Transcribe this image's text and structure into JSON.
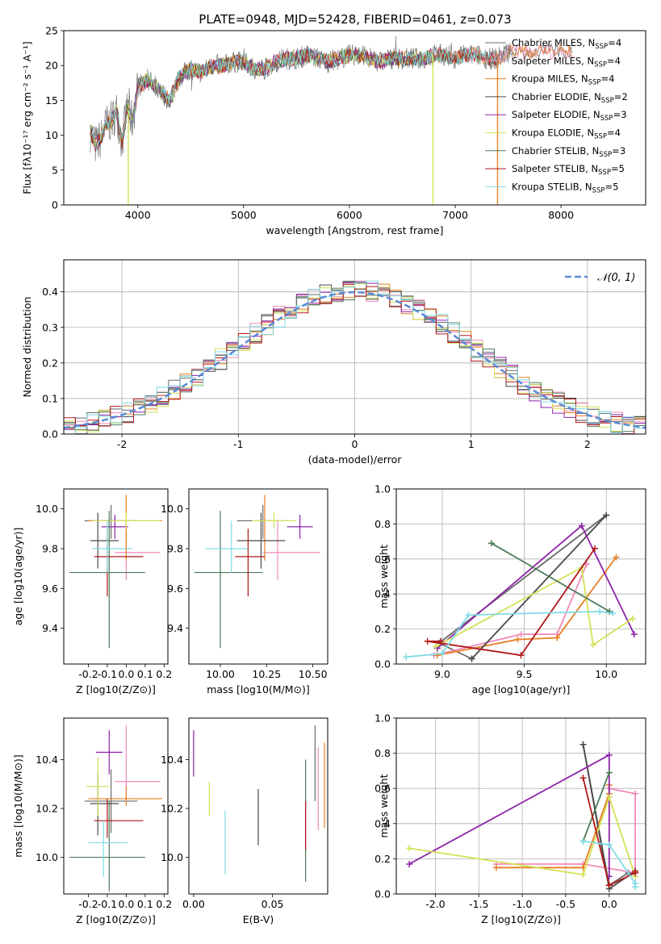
{
  "figure": {
    "title": "PLATE=0948, MJD=52428, FIBERID=0461, z=0.073"
  },
  "legend_entries": [
    {
      "model": "Chabrier MILES",
      "n": "4",
      "color": "#6a6a6a"
    },
    {
      "model": "Salpeter MILES",
      "n": "4",
      "color": "#f08aba"
    },
    {
      "model": "Kroupa MILES",
      "n": "4",
      "color": "#e67e22"
    },
    {
      "model": "Chabrier ELODIE",
      "n": "2",
      "color": "#4a4a4a"
    },
    {
      "model": "Salpeter ELODIE",
      "n": "3",
      "color": "#8e24aa"
    },
    {
      "model": "Kroupa ELODIE",
      "n": "4",
      "color": "#d4e157"
    },
    {
      "model": "Chabrier STELIB",
      "n": "3",
      "color": "#4e7a5a"
    },
    {
      "model": "Salpeter STELIB",
      "n": "5",
      "color": "#b01818"
    },
    {
      "model": "Kroupa STELIB",
      "n": "5",
      "color": "#7fdbe6"
    }
  ],
  "chart_data": [
    {
      "id": "spectrum",
      "type": "line",
      "xlabel": "wavelength [Angstrom, rest frame]",
      "ylabel": "Flux [fλ10⁻¹⁷ erg cm⁻² s⁻¹ A⁻¹]",
      "xlim": [
        3300,
        8800
      ],
      "ylim": [
        0,
        25
      ],
      "xticks": [
        4000,
        5000,
        6000,
        7000,
        8000
      ],
      "yticks": [
        0,
        5,
        10,
        15,
        20,
        25
      ],
      "grid": false,
      "legend": "upper-right",
      "x": [
        3550,
        3600,
        3650,
        3700,
        3750,
        3800,
        3850,
        3900,
        3950,
        4000,
        4100,
        4200,
        4300,
        4400,
        4500,
        4600,
        4700,
        4800,
        4900,
        5000,
        5100,
        5200,
        5300,
        5400,
        5500,
        5600,
        5700,
        5800,
        5900,
        6000,
        6100,
        6200,
        6300,
        6400,
        6500,
        6600,
        6700,
        6800,
        6900,
        7000,
        7100,
        7200,
        7300,
        7400,
        7500
      ],
      "y": [
        10.5,
        8.5,
        9.5,
        11.5,
        12,
        13.5,
        9,
        14,
        12,
        17,
        18,
        16.5,
        15,
        18.5,
        19.5,
        19,
        20,
        20,
        20.5,
        20.5,
        19.5,
        19.5,
        20.5,
        21,
        21,
        21.5,
        21,
        20.5,
        21,
        21.5,
        21.5,
        21,
        20.5,
        21,
        21,
        21,
        21,
        21.5,
        21.5,
        21,
        21.5,
        21.5,
        21,
        21,
        22
      ],
      "series": [
        {
          "name": "Chabrier MILES, N_SSP=4"
        },
        {
          "name": "Salpeter MILES, N_SSP=4"
        },
        {
          "name": "Kroupa MILES, N_SSP=4"
        },
        {
          "name": "Chabrier ELODIE, N_SSP=2"
        },
        {
          "name": "Salpeter ELODIE, N_SSP=3"
        },
        {
          "name": "Kroupa ELODIE, N_SSP=4"
        },
        {
          "name": "Chabrier STELIB, N_SSP=3"
        },
        {
          "name": "Salpeter STELIB, N_SSP=5"
        },
        {
          "name": "Kroupa STELIB, N_SSP=5"
        }
      ]
    },
    {
      "id": "residuals",
      "type": "histogram",
      "xlabel": "(data-model)/error",
      "ylabel": "Normed distribution",
      "xlim": [
        -2.5,
        2.5
      ],
      "ylim": [
        0,
        0.49
      ],
      "xticks": [
        -2,
        -1,
        0,
        1,
        2
      ],
      "yticks": [
        0.0,
        0.1,
        0.2,
        0.3,
        0.4
      ],
      "grid": true,
      "legend": "upper-right",
      "reference_label": "𝒩(0, 1)",
      "reference_color": "#5b8ad6",
      "bin_width": 0.1
    },
    {
      "id": "age_vs_Z",
      "type": "errorbar",
      "xlabel": "Z [log10(Z/Z⊙)]",
      "ylabel": "age  [log10(age/yr)]",
      "xlim": [
        -0.33,
        0.22
      ],
      "ylim": [
        9.22,
        10.1
      ],
      "xticks": [
        -0.2,
        -0.1,
        0.0,
        0.1,
        0.2
      ],
      "yticks": [
        9.4,
        9.6,
        9.8,
        10.0
      ],
      "points": [
        {
          "x": -0.08,
          "xerr": [
            0.14,
            0.14
          ],
          "y": 9.94,
          "yerr": [
            0.09,
            0.08
          ]
        },
        {
          "x": 0.0,
          "xerr": [
            0.06,
            0.18
          ],
          "y": 9.78,
          "yerr": [
            0.14,
            0.16
          ]
        },
        {
          "x": 0.0,
          "xerr": [
            0.2,
            0.19
          ],
          "y": 9.94,
          "yerr": [
            0.2,
            0.13
          ]
        },
        {
          "x": -0.15,
          "xerr": [
            0.04,
            0.11
          ],
          "y": 9.84,
          "yerr": [
            0.14,
            0.14
          ]
        },
        {
          "x": -0.06,
          "xerr": [
            0.07,
            0.07
          ],
          "y": 9.91,
          "yerr": [
            0.06,
            0.06
          ]
        },
        {
          "x": 0.0,
          "xerr": [
            0.18,
            0.18
          ],
          "y": 9.94,
          "yerr": [
            0.04,
            0.04
          ]
        },
        {
          "x": -0.09,
          "xerr": [
            0.21,
            0.19
          ],
          "y": 9.68,
          "yerr": [
            0.38,
            0.31
          ]
        },
        {
          "x": -0.1,
          "xerr": [
            0.07,
            0.19
          ],
          "y": 9.76,
          "yerr": [
            0.2,
            0.14
          ]
        },
        {
          "x": -0.1,
          "xerr": [
            0.08,
            0.13
          ],
          "y": 9.8,
          "yerr": [
            0.12,
            0.14
          ]
        }
      ]
    },
    {
      "id": "age_vs_mass",
      "type": "errorbar",
      "xlabel": "mass [log10(M/M⊙)]",
      "xlim": [
        9.83,
        10.58
      ],
      "ylim": [
        9.22,
        10.1
      ],
      "xticks": [
        10.0,
        10.25,
        10.5
      ],
      "yticks": [
        9.4,
        9.6,
        9.8,
        10.0
      ],
      "points": [
        {
          "x": 10.23,
          "xerr": [
            0.14,
            0.14
          ],
          "y": 9.94,
          "yerr": [
            0.09,
            0.08
          ]
        },
        {
          "x": 10.31,
          "xerr": [
            0.08,
            0.23
          ],
          "y": 9.78,
          "yerr": [
            0.14,
            0.16
          ]
        },
        {
          "x": 10.24,
          "xerr": [
            0.03,
            0.05
          ],
          "y": 9.94,
          "yerr": [
            0.2,
            0.13
          ]
        },
        {
          "x": 10.22,
          "xerr": [
            0.13,
            0.13
          ],
          "y": 9.84,
          "yerr": [
            0.14,
            0.14
          ]
        },
        {
          "x": 10.43,
          "xerr": [
            0.07,
            0.07
          ],
          "y": 9.91,
          "yerr": [
            0.06,
            0.06
          ]
        },
        {
          "x": 10.29,
          "xerr": [
            0.12,
            0.12
          ],
          "y": 9.94,
          "yerr": [
            0.04,
            0.04
          ]
        },
        {
          "x": 10.0,
          "xerr": [
            0.14,
            0.23
          ],
          "y": 9.68,
          "yerr": [
            0.38,
            0.31
          ]
        },
        {
          "x": 10.15,
          "xerr": [
            0.07,
            0.09
          ],
          "y": 9.76,
          "yerr": [
            0.2,
            0.14
          ]
        },
        {
          "x": 10.06,
          "xerr": [
            0.14,
            0.09
          ],
          "y": 9.8,
          "yerr": [
            0.12,
            0.14
          ]
        }
      ]
    },
    {
      "id": "mass_weight_vs_age",
      "type": "line",
      "xlabel": "age  [log10(age/yr)]",
      "ylabel": "mass weight",
      "xlim": [
        8.72,
        10.24
      ],
      "ylim": [
        0,
        1.0
      ],
      "xticks": [
        9.0,
        9.5,
        10.0
      ],
      "yticks": [
        0.0,
        0.2,
        0.4,
        0.6,
        0.8,
        1.0
      ],
      "grid": true,
      "series": [
        {
          "x": [
            9.18,
            8.98,
            10.0
          ],
          "y": [
            0.03,
            0.12,
            0.85
          ]
        },
        {
          "x": [
            9.88,
            9.7,
            9.48,
            8.95
          ],
          "y": [
            0.57,
            0.17,
            0.17,
            0.05
          ]
        },
        {
          "x": [
            10.06,
            9.7,
            9.46,
            8.97
          ],
          "y": [
            0.61,
            0.15,
            0.14,
            0.05
          ]
        },
        {
          "x": [
            9.18,
            10.0
          ],
          "y": [
            0.03,
            0.85
          ]
        },
        {
          "x": [
            10.17,
            9.85,
            8.97
          ],
          "y": [
            0.17,
            0.79,
            0.09
          ]
        },
        {
          "x": [
            10.16,
            9.92,
            9.85,
            8.96
          ],
          "y": [
            0.26,
            0.11,
            0.55,
            0.1
          ]
        },
        {
          "x": [
            9.3,
            10.02
          ],
          "y": [
            0.69,
            0.3
          ]
        },
        {
          "x": [
            9.93,
            9.48,
            8.91,
            8.99
          ],
          "y": [
            0.66,
            0.05,
            0.13,
            0.13
          ]
        },
        {
          "x": [
            8.78,
            9.0,
            9.16,
            9.96,
            10.04
          ],
          "y": [
            0.04,
            0.06,
            0.28,
            0.3,
            0.29
          ]
        }
      ]
    },
    {
      "id": "mass_vs_Z",
      "type": "errorbar",
      "xlabel": "Z [log10(Z/Z⊙)]",
      "ylabel": "mass [log10(M/M⊙)]",
      "xlim": [
        -0.33,
        0.22
      ],
      "ylim": [
        9.85,
        10.57
      ],
      "xticks": [
        -0.2,
        -0.1,
        0.0,
        0.1,
        0.2
      ],
      "yticks": [
        10.0,
        10.2,
        10.4
      ],
      "points": [
        {
          "x": -0.08,
          "xerr": [
            0.14,
            0.14
          ],
          "y": 10.23,
          "yerr": [
            0.13,
            0.13
          ]
        },
        {
          "x": 0.0,
          "xerr": [
            0.06,
            0.18
          ],
          "y": 10.31,
          "yerr": [
            0.08,
            0.23
          ]
        },
        {
          "x": 0.0,
          "xerr": [
            0.2,
            0.19
          ],
          "y": 10.24,
          "yerr": [
            0.03,
            0.05
          ]
        },
        {
          "x": -0.15,
          "xerr": [
            0.04,
            0.11
          ],
          "y": 10.22,
          "yerr": [
            0.13,
            0.13
          ]
        },
        {
          "x": -0.09,
          "xerr": [
            0.07,
            0.07
          ],
          "y": 10.43,
          "yerr": [
            0.09,
            0.09
          ]
        },
        {
          "x": -0.15,
          "xerr": [
            0.06,
            0.06
          ],
          "y": 10.29,
          "yerr": [
            0.12,
            0.12
          ]
        },
        {
          "x": -0.09,
          "xerr": [
            0.21,
            0.19
          ],
          "y": 10.0,
          "yerr": [
            0.14,
            0.23
          ]
        },
        {
          "x": -0.1,
          "xerr": [
            0.07,
            0.19
          ],
          "y": 10.15,
          "yerr": [
            0.07,
            0.09
          ]
        },
        {
          "x": -0.12,
          "xerr": [
            0.08,
            0.13
          ],
          "y": 10.06,
          "yerr": [
            0.14,
            0.09
          ]
        }
      ]
    },
    {
      "id": "mass_vs_EBV",
      "type": "errorbar",
      "xlabel": "E(B-V)",
      "xlim": [
        -0.003,
        0.085
      ],
      "ylim": [
        9.85,
        10.57
      ],
      "xticks": [
        0.0,
        0.05
      ],
      "yticks": [
        10.0,
        10.2,
        10.4
      ],
      "points": [
        {
          "x": 0.077,
          "y": 10.31,
          "yerr": [
            0.08,
            0.23
          ]
        },
        {
          "x": 0.079,
          "y": 10.24,
          "yerr": [
            0.13,
            0.21
          ]
        },
        {
          "x": 0.083,
          "y": 10.29,
          "yerr": [
            0.17,
            0.18
          ]
        },
        {
          "x": 0.041,
          "y": 10.16,
          "yerr": [
            0.11,
            0.12
          ]
        },
        {
          "x": 0.0,
          "y": 10.42,
          "yerr": [
            0.09,
            0.1
          ]
        },
        {
          "x": 0.01,
          "y": 10.24,
          "yerr": [
            0.07,
            0.07
          ]
        },
        {
          "x": 0.071,
          "y": 10.17,
          "yerr": [
            0.27,
            0.23
          ]
        },
        {
          "x": 0.071,
          "y": 10.15,
          "yerr": [
            0.12,
            0.08
          ]
        },
        {
          "x": 0.02,
          "y": 10.06,
          "yerr": [
            0.13,
            0.13
          ]
        }
      ]
    },
    {
      "id": "mass_weight_vs_Z",
      "type": "line",
      "xlabel": "Z [log10(Z/Z⊙)]",
      "ylabel": "mass weight",
      "xlim": [
        -2.45,
        0.42
      ],
      "ylim": [
        0,
        1.0
      ],
      "xticks": [
        -2.0,
        -1.5,
        -1.0,
        -0.5,
        0.0
      ],
      "yticks": [
        0.0,
        0.2,
        0.4,
        0.6,
        0.8,
        1.0
      ],
      "grid": true,
      "series": [
        {
          "x": [
            -0.3,
            0.0,
            0.22
          ],
          "y": [
            0.85,
            0.05,
            0.12
          ]
        },
        {
          "x": [
            0.0,
            0.3,
            0.3,
            -0.3,
            -1.3
          ],
          "y": [
            0.6,
            0.57,
            0.12,
            0.17,
            0.17
          ]
        },
        {
          "x": [
            0.0,
            0.0,
            -0.3,
            -1.3
          ],
          "y": [
            0.62,
            0.57,
            0.15,
            0.15
          ]
        },
        {
          "x": [
            -0.3,
            0.0,
            0.3
          ],
          "y": [
            0.85,
            0.03,
            0.13
          ]
        },
        {
          "x": [
            -2.3,
            0.0,
            0.0
          ],
          "y": [
            0.17,
            0.79,
            0.1
          ]
        },
        {
          "x": [
            -2.3,
            -0.3,
            0.0,
            0.3
          ],
          "y": [
            0.26,
            0.11,
            0.55,
            0.1
          ]
        },
        {
          "x": [
            -0.3,
            0.0
          ],
          "y": [
            0.3,
            0.69
          ]
        },
        {
          "x": [
            -0.3,
            0.0,
            0.3,
            0.3
          ],
          "y": [
            0.66,
            0.05,
            0.12,
            0.13
          ]
        },
        {
          "x": [
            -0.3,
            0.0,
            0.3,
            0.3
          ],
          "y": [
            0.3,
            0.28,
            0.06,
            0.04
          ]
        }
      ]
    }
  ]
}
